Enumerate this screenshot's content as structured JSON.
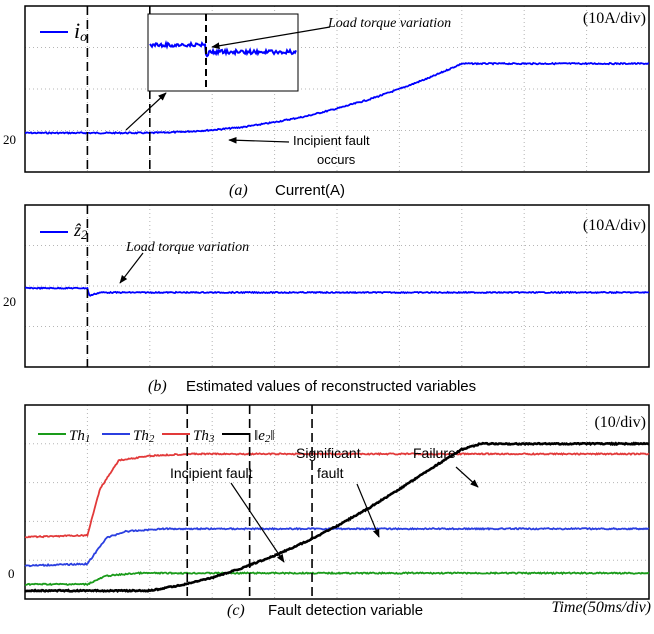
{
  "chart_data": [
    {
      "panel": "a",
      "type": "line",
      "caption": {
        "letter": "(a)",
        "text": "Current(A)"
      },
      "scale": "(10A/div)",
      "legend": [
        {
          "symbol": "i",
          "sub": "o",
          "color": "#0000ff"
        }
      ],
      "y_tick_labels": [
        "20"
      ],
      "x_divisions": 10,
      "y_divisions": 4,
      "series": [
        {
          "color": "#0000ff",
          "points": [
            [
              0,
              20
            ],
            [
              1,
              20
            ],
            [
              2,
              20
            ],
            [
              2.5,
              20.1
            ],
            [
              3,
              20.3
            ],
            [
              3.5,
              20.6
            ],
            [
              4,
              21.1
            ],
            [
              4.5,
              21.7
            ],
            [
              5,
              22.5
            ],
            [
              5.5,
              23.4
            ],
            [
              6,
              24.5
            ],
            [
              6.5,
              25.7
            ],
            [
              7,
              27.1
            ],
            [
              8,
              27.1
            ],
            [
              10,
              27.1
            ]
          ]
        }
      ],
      "ylim": [
        16,
        33
      ],
      "events": [
        1,
        2
      ],
      "inset_label": "Load torque variation",
      "annotations": [
        {
          "text": "Incipient fault",
          "text2": "occurs"
        }
      ]
    },
    {
      "panel": "b",
      "type": "line",
      "caption": {
        "letter": "(b)",
        "text": "Estimated values of reconstructed variables"
      },
      "scale": "(10A/div)",
      "legend": [
        {
          "symbol": "ẑ",
          "sub": "2",
          "color": "#0000ff"
        }
      ],
      "y_tick_labels": [
        "20"
      ],
      "x_divisions": 10,
      "y_divisions": 4,
      "series": [
        {
          "color": "#0000ff",
          "points": [
            [
              0,
              21.3
            ],
            [
              1,
              21.3
            ],
            [
              1.03,
              20.6
            ],
            [
              1.2,
              20.9
            ],
            [
              10,
              20.9
            ]
          ]
        }
      ],
      "ylim": [
        14,
        29
      ],
      "events": [
        1
      ],
      "annotations": [
        {
          "text": "Load torque variation"
        }
      ]
    },
    {
      "panel": "c",
      "type": "line",
      "caption": {
        "letter": "(c)",
        "text": "Fault detection variable"
      },
      "scale": "(10/div)",
      "xlabel": "Time(50ms/div)",
      "y_tick_labels": [
        "0"
      ],
      "x_divisions": 10,
      "y_divisions": 5,
      "legend": [
        {
          "symbol": "Th",
          "sub": "1",
          "color": "#1a9b1a"
        },
        {
          "symbol": "Th",
          "sub": "2",
          "color": "#2b3fe0"
        },
        {
          "symbol": "Th",
          "sub": "3",
          "color": "#e23a3a"
        },
        {
          "symbol": "‖e",
          "sub": "2",
          "suffix": "‖",
          "color": "#000000"
        }
      ],
      "series": [
        {
          "name": "Th1",
          "color": "#1a9b1a",
          "points": [
            [
              0,
              0.7
            ],
            [
              1,
              0.7
            ],
            [
              1.3,
              1.6
            ],
            [
              1.8,
              1.9
            ],
            [
              10,
              1.9
            ]
          ]
        },
        {
          "name": "Th2",
          "color": "#2b3fe0",
          "points": [
            [
              0,
              2.7
            ],
            [
              1,
              2.9
            ],
            [
              1.3,
              5.7
            ],
            [
              1.6,
              6.4
            ],
            [
              2.2,
              6.7
            ],
            [
              10,
              6.7
            ]
          ]
        },
        {
          "name": "Th3",
          "color": "#e23a3a",
          "points": [
            [
              0,
              5.8
            ],
            [
              1,
              6.0
            ],
            [
              1.2,
              11.0
            ],
            [
              1.5,
              14.1
            ],
            [
              2,
              14.6
            ],
            [
              2.6,
              14.8
            ],
            [
              10,
              14.8
            ]
          ]
        },
        {
          "name": "e2",
          "color": "#000000",
          "points": [
            [
              0,
              0
            ],
            [
              2,
              0
            ],
            [
              2.5,
              0.6
            ],
            [
              3,
              1.4
            ],
            [
              3.5,
              2.5
            ],
            [
              4,
              3.8
            ],
            [
              4.5,
              5.3
            ],
            [
              5,
              7.0
            ],
            [
              5.5,
              8.9
            ],
            [
              6,
              11.0
            ],
            [
              6.5,
              13.2
            ],
            [
              7,
              15.3
            ],
            [
              7.3,
              15.9
            ],
            [
              10,
              15.9
            ]
          ]
        }
      ],
      "ylim": [
        -0.9,
        20.1
      ],
      "events": [
        2.6,
        3.6,
        4.6
      ],
      "annotations": [
        {
          "text": "Incipient fault"
        },
        {
          "text": "Significant",
          "text2": "fault"
        },
        {
          "text": "Failure"
        }
      ]
    }
  ]
}
